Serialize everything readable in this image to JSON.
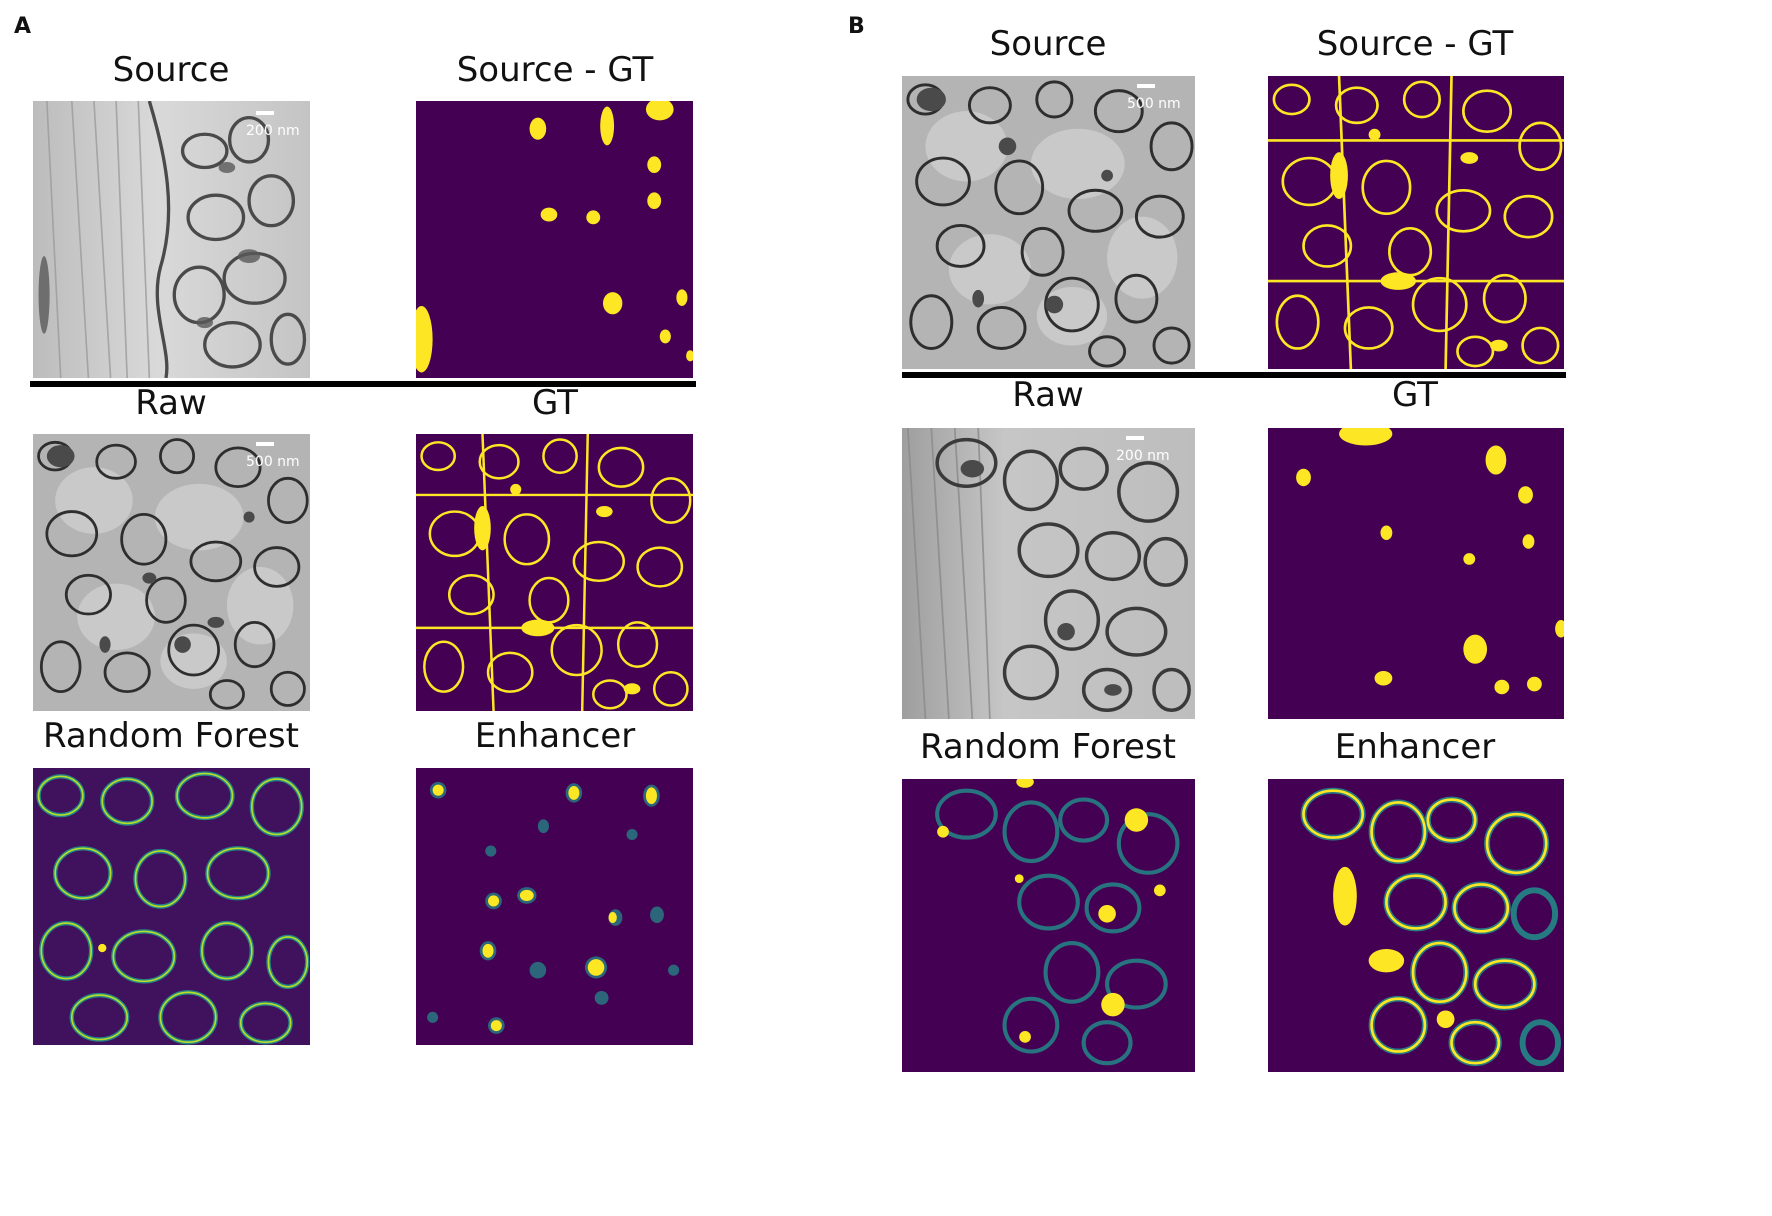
{
  "panels": {
    "a": {
      "letter": "A",
      "titles": {
        "source": "Source",
        "source_gt": "Source - GT",
        "raw": "Raw",
        "gt": "GT",
        "random_forest": "Random Forest",
        "enhancer": "Enhancer"
      },
      "scalebars": {
        "source": "200 nm",
        "raw": "500 nm"
      }
    },
    "b": {
      "letter": "B",
      "titles": {
        "source": "Source",
        "source_gt": "Source - GT",
        "raw": "Raw",
        "gt": "GT",
        "random_forest": "Random Forest",
        "enhancer": "Enhancer"
      },
      "scalebars": {
        "source": "500 nm",
        "raw": "200 nm"
      }
    }
  },
  "colors": {
    "mask_background": "#440154",
    "mask_foreground": "#fde725",
    "prob_mid": "#21918c",
    "prob_low": "#3b528b",
    "em_light": "#cfcfcf",
    "em_dark": "#3a3a3a"
  }
}
